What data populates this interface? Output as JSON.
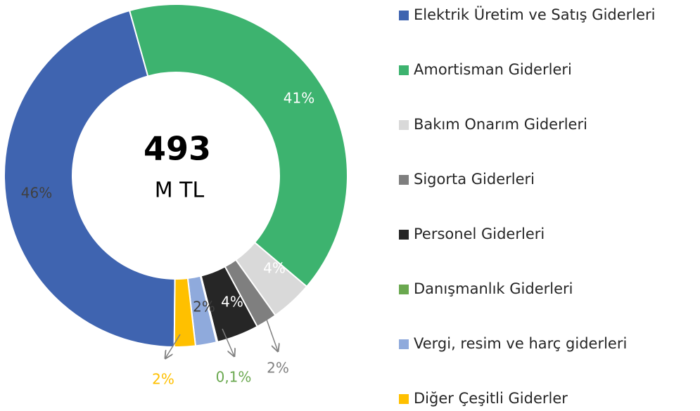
{
  "chart_data": {
    "type": "donut",
    "center_value": "493",
    "center_unit": "M TL",
    "categories": [
      "Elektrik Üretim ve Satış Giderleri",
      "Amortisman Giderleri",
      "Bakım Onarım Giderleri",
      "Sigorta Giderleri",
      "Personel Giderleri",
      "Danışmanlık Giderleri",
      "Vergi, resim ve harç giderleri",
      "Diğer Çeşitli Giderler"
    ],
    "values": [
      46,
      41,
      4,
      2,
      4,
      0.1,
      2,
      2
    ],
    "value_labels": [
      "46%",
      "41%",
      "4%",
      "2%",
      "4%",
      "0,1%",
      "2%",
      "2%"
    ],
    "colors": [
      "#3f64b0",
      "#3db36f",
      "#d9d9d9",
      "#7f7f7f",
      "#262626",
      "#6aa84f",
      "#8faadc",
      "#ffc000"
    ],
    "legend": "right"
  }
}
